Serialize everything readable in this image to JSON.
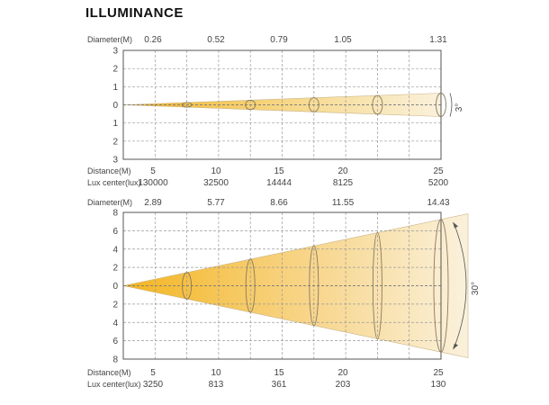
{
  "title": "ILLUMINANCE",
  "labels": {
    "diameter": "Diameter(M)",
    "distance": "Distance(M)",
    "lux": "Lux center(lux)"
  },
  "colors": {
    "beam_bright": "#f3b51f",
    "beam_pale": "#faf1dc",
    "frame": "#555555",
    "grid": "#9a9a9a",
    "ellipse": "#8a7a60"
  },
  "chart_data": [
    {
      "type": "diagram",
      "angle_label": "3°",
      "y_ticks": [
        "3",
        "2",
        "1",
        "0",
        "1",
        "2",
        "3"
      ],
      "diameters": [
        "0.26",
        "0.52",
        "0.79",
        "1.05",
        "1.31"
      ],
      "distances": [
        "5",
        "10",
        "15",
        "20",
        "25"
      ],
      "lux": [
        "130000",
        "32500",
        "14444",
        "8125",
        "5200"
      ]
    },
    {
      "type": "diagram",
      "angle_label": "30°",
      "y_ticks": [
        "8",
        "6",
        "4",
        "2",
        "0",
        "2",
        "4",
        "6",
        "8"
      ],
      "diameters": [
        "2.89",
        "5.77",
        "8.66",
        "11.55",
        "14.43"
      ],
      "distances": [
        "5",
        "10",
        "15",
        "20",
        "25"
      ],
      "lux": [
        "3250",
        "813",
        "361",
        "203",
        "130"
      ]
    }
  ]
}
